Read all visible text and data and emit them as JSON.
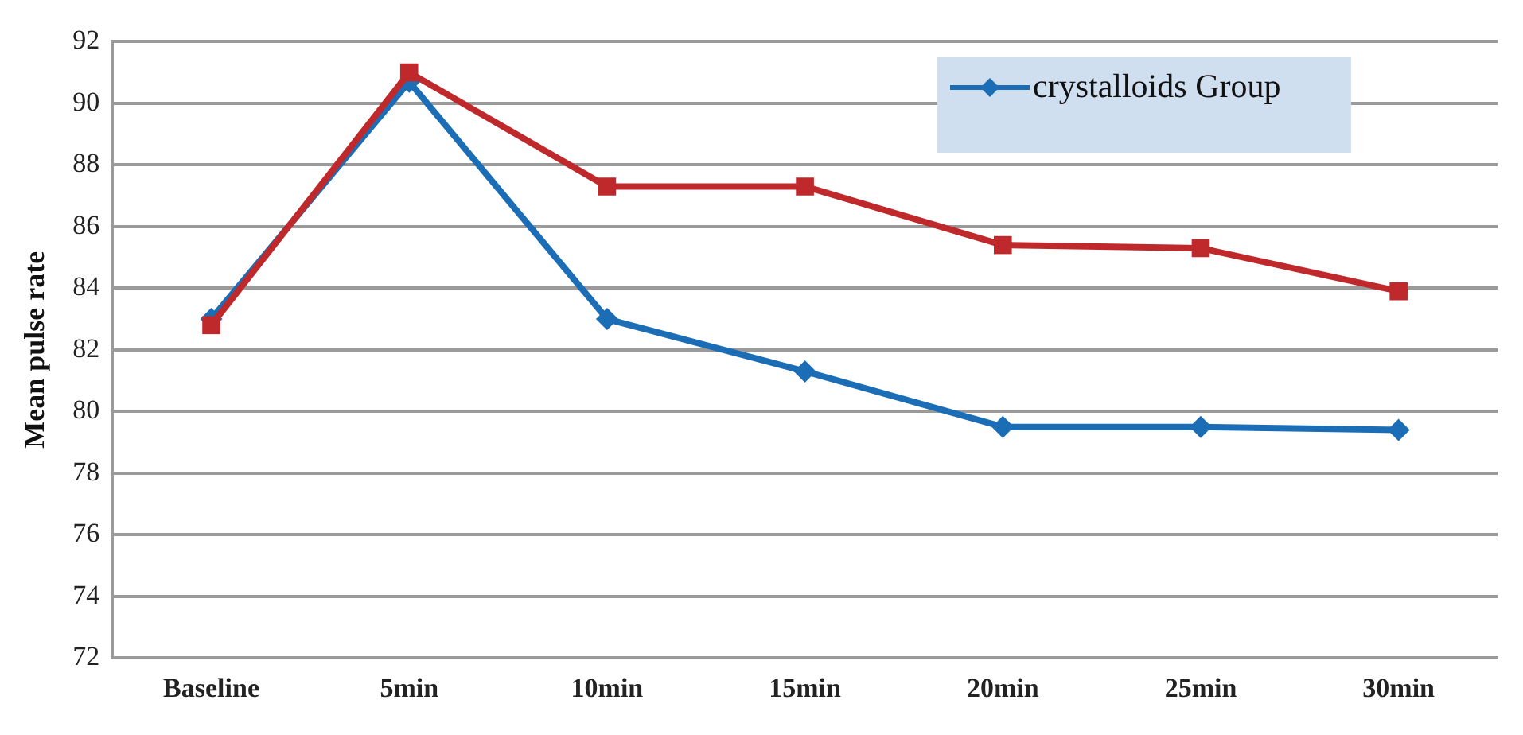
{
  "chart_data": {
    "type": "line",
    "ylabel": "Mean pulse rate",
    "categories": [
      "Baseline",
      "5min",
      "10min",
      "15min",
      "20min",
      "25min",
      "30min"
    ],
    "series": [
      {
        "name": "crystalloids Group",
        "color": "#1b6db5",
        "marker": "diamond",
        "values": [
          83.0,
          90.7,
          83.0,
          81.3,
          79.5,
          79.5,
          79.4
        ]
      },
      {
        "color": "#c0292b",
        "marker": "square",
        "values": [
          82.8,
          91.0,
          87.3,
          87.3,
          85.4,
          85.3,
          83.9
        ]
      }
    ],
    "ylim": [
      72,
      92
    ],
    "yticks": [
      72,
      74,
      76,
      78,
      80,
      82,
      84,
      86,
      88,
      90,
      92
    ],
    "grid": "y",
    "legend": "top right",
    "line_style": "solid"
  }
}
